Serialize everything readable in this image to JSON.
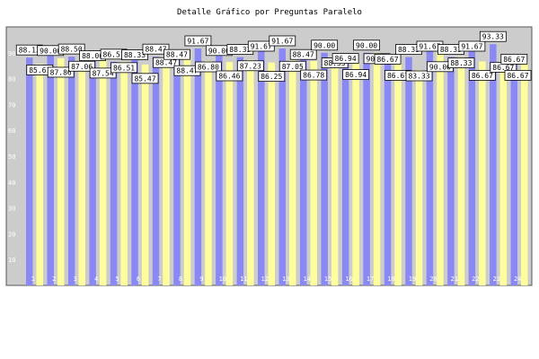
{
  "chart_data": {
    "type": "bar",
    "title": "Detalle Gráfico por Preguntas Paralelo",
    "xlabel": "",
    "ylabel": "",
    "ylim": [
      0,
      100
    ],
    "y_ticks": [
      "10",
      "20",
      "30",
      "40",
      "50",
      "60",
      "70",
      "80",
      "90"
    ],
    "grid": false,
    "categories": [
      "1",
      "2",
      "3",
      "4",
      "5",
      "6",
      "7",
      "8",
      "9",
      "10",
      "11",
      "12",
      "13",
      "14",
      "15",
      "16",
      "17",
      "18",
      "19",
      "20",
      "21",
      "22",
      "23",
      "24"
    ],
    "series": [
      {
        "values": [
          88.13,
          90.0,
          88.5,
          88.0,
          86.51,
          88.33,
          88.47,
          88.47,
          91.67,
          90.0,
          88.33,
          91.67,
          91.67,
          88.47,
          90.0,
          86.94,
          90.0,
          86.67,
          88.33,
          91.67,
          88.33,
          91.67,
          93.33,
          86.67
        ]
      },
      {
        "values": [
          85.61,
          87.86,
          87.06,
          87.54,
          86.51,
          85.47,
          88.47,
          88.47,
          86.8,
          86.46,
          87.23,
          86.25,
          87.05,
          86.78,
          88.33,
          86.94,
          90.0,
          86.67,
          83.33,
          90.0,
          88.33,
          86.67,
          86.67,
          86.67
        ]
      }
    ],
    "colors": {
      "series_1": "#8a88f4",
      "series_2": "#fefe9c",
      "plot_bg": "#cccccc",
      "label_bg": "#ffffff"
    }
  }
}
